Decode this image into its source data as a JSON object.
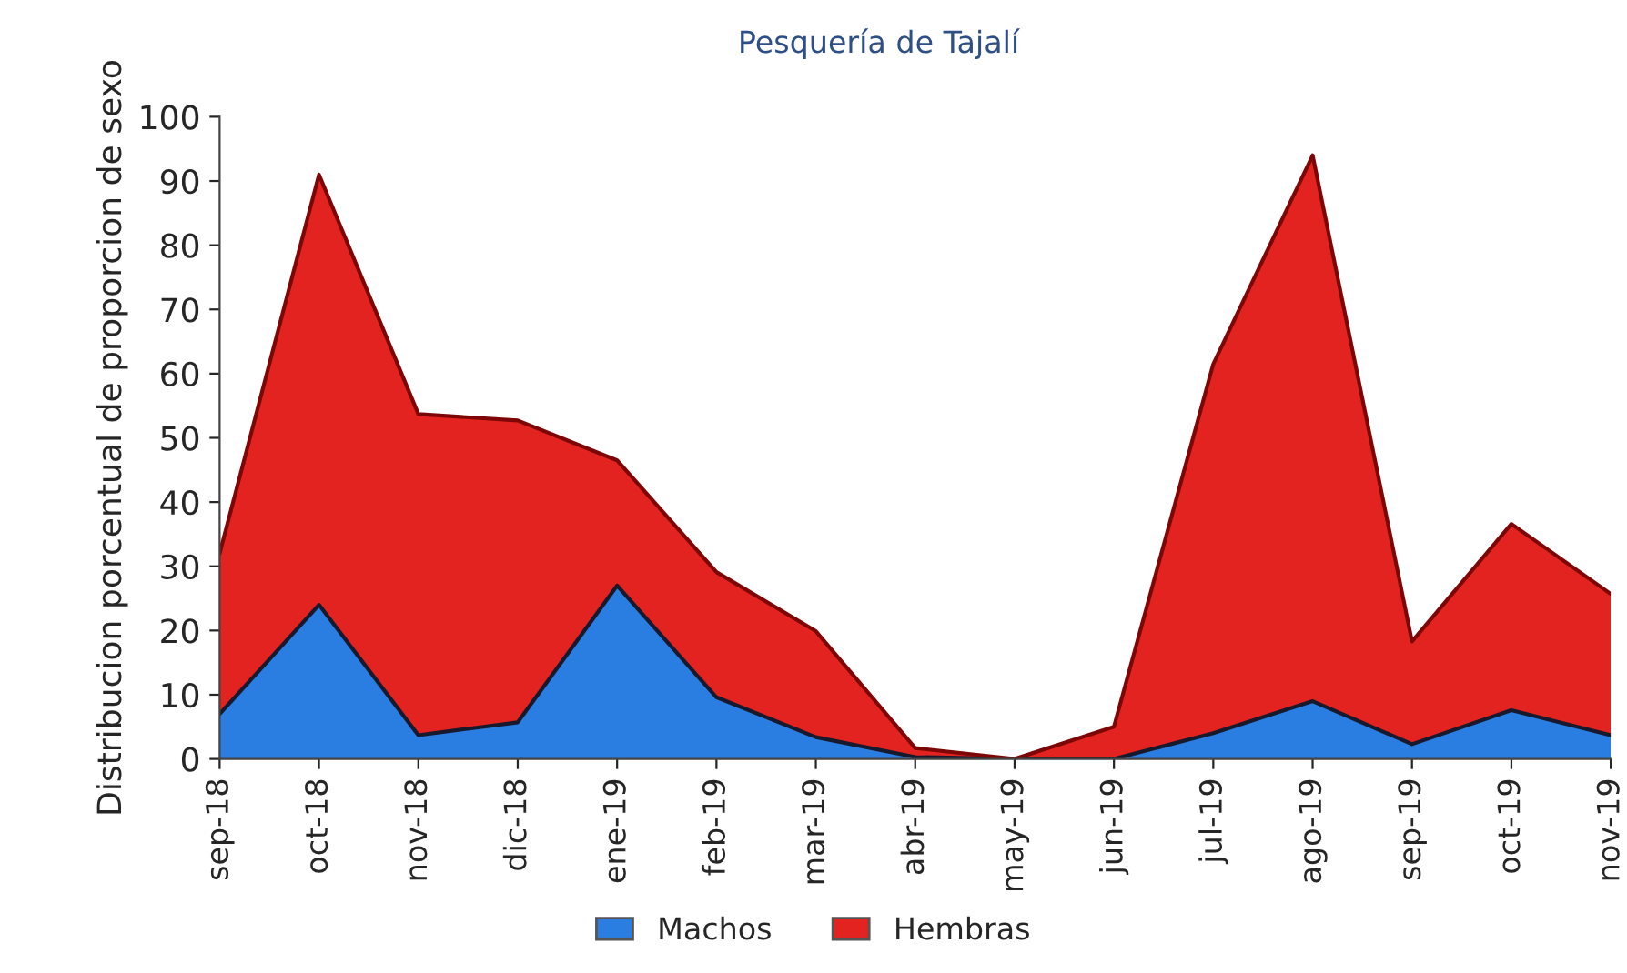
{
  "chart_data": {
    "type": "area",
    "title": "Pesquería de Tajalí",
    "ylabel": "Distribucion porcentual de proporcion de sexo",
    "categories": [
      "sep-18",
      "oct-18",
      "nov-18",
      "dic-18",
      "ene-19",
      "feb-19",
      "mar-19",
      "abr-19",
      "may-19",
      "jun-19",
      "jul-19",
      "ago-19",
      "sep-19",
      "oct-19",
      "nov-19"
    ],
    "stacked": true,
    "series": [
      {
        "name": "Machos",
        "color": "#2a7de1",
        "values": [
          7,
          24,
          3.7,
          5.7,
          27,
          9.6,
          3.4,
          0.3,
          0,
          0,
          4,
          9,
          2.3,
          7.6,
          3.7
        ]
      },
      {
        "name": "Hembras",
        "color": "#e3231f",
        "values": [
          25,
          67,
          50,
          47,
          19.5,
          19.5,
          16.5,
          1.4,
          0,
          5,
          57.5,
          85,
          16,
          29,
          22
        ]
      }
    ],
    "ylim": [
      0,
      100
    ],
    "yticks": [
      0,
      10,
      20,
      30,
      40,
      50,
      60,
      70,
      80,
      90,
      100
    ],
    "legend": "bottom"
  }
}
